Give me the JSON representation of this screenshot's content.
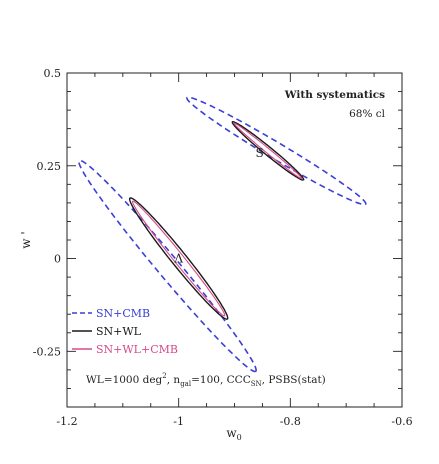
{
  "chart_data": {
    "type": "contour",
    "xlabel": "w",
    "xlabel_sub": "0",
    "ylabel": "w '",
    "xlim": [
      -1.2,
      -0.6
    ],
    "ylim": [
      -0.4,
      0.5
    ],
    "xticks": [
      "-1.2",
      "-1",
      "-0.8",
      "-0.6"
    ],
    "yticks": [
      "-0.25",
      "0",
      "0.25",
      "0.5"
    ],
    "annotations": {
      "systematics": "With systematics",
      "confidence": "68% cl",
      "survey_prefix": "WL=1000 deg",
      "survey_sup": "2",
      "survey_ngal": ", n",
      "survey_ngal_sub": "gal",
      "survey_mid": "=100, CCC",
      "survey_ccc_sub": "SN",
      "survey_suffix": ", PSBS(stat)"
    },
    "regions": [
      {
        "label": "Λ",
        "x": -1.0,
        "y": 0.0
      },
      {
        "label": "S",
        "x": -0.855,
        "y": 0.285
      }
    ],
    "legend_position": "bottom-left",
    "series": [
      {
        "name": "SN+CMB",
        "style": "dashed",
        "color": "#3a3fd6"
      },
      {
        "name": "SN+WL",
        "style": "solid",
        "color": "#1a1a1a"
      },
      {
        "name": "SN+WL+CMB",
        "style": "solid",
        "color": "#d64a8a"
      }
    ],
    "contours": [
      {
        "series": "SN+CMB",
        "center": [
          -1.02,
          -0.02
        ],
        "semi_major": 0.325,
        "semi_minor": 0.022,
        "angle_deg": -61
      },
      {
        "series": "SN+WL",
        "center": [
          -1.0,
          0.0
        ],
        "semi_major": 0.185,
        "semi_minor": 0.015,
        "angle_deg": -62
      },
      {
        "series": "SN+WL+CMB",
        "center": [
          -1.0,
          0.0
        ],
        "semi_major": 0.175,
        "semi_minor": 0.01,
        "angle_deg": -62
      },
      {
        "series": "SN+CMB",
        "center": [
          -0.825,
          0.29
        ],
        "semi_major": 0.215,
        "semi_minor": 0.019,
        "angle_deg": -42
      },
      {
        "series": "SN+WL",
        "center": [
          -0.84,
          0.29
        ],
        "semi_major": 0.101,
        "semi_minor": 0.009,
        "angle_deg": -51
      },
      {
        "series": "SN+WL+CMB",
        "center": [
          -0.84,
          0.29
        ],
        "semi_major": 0.096,
        "semi_minor": 0.005,
        "angle_deg": -51
      }
    ],
    "colors": {
      "annotation_green": "#7ecb2e",
      "axis": "#222222"
    }
  }
}
